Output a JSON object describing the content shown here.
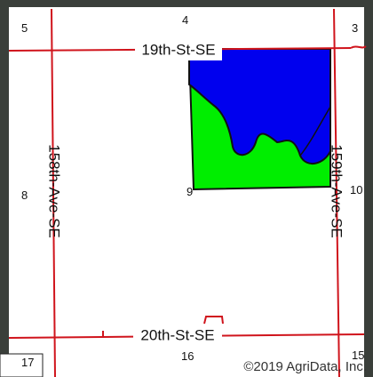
{
  "sections": [
    "5",
    "4",
    "3",
    "8",
    "9",
    "10",
    "17",
    "16",
    "15"
  ],
  "roads": [
    "19th-St-SE",
    "158th-Ave-SE",
    "159th-Ave-SE",
    "20th-St-SE"
  ],
  "copyright": "©2019 AgriData, Inc."
}
